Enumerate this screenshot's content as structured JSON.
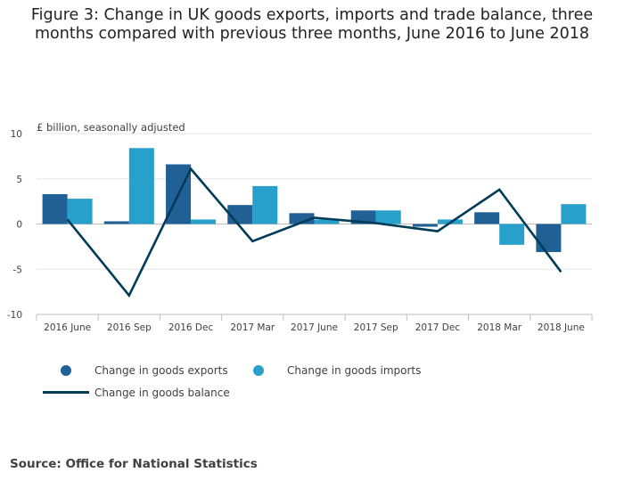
{
  "title_lines": [
    "Figure 3: Change in UK goods exports, imports and trade balance, three",
    "months compared with previous three months, June 2016 to June 2018"
  ],
  "source": "Source: Office for National Statistics",
  "colors": {
    "exports": "#206095",
    "imports": "#27a0cc",
    "balance": "#003c57",
    "grid": "#e6e6e6",
    "axis": "#bebebe"
  },
  "chart_data": {
    "type": "bar",
    "title": "Figure 3: Change in UK goods exports, imports and trade balance, three months compared with previous three months, June 2016 to June 2018",
    "ylabel": "£ billion, seasonally adjusted",
    "xlabel": "",
    "ylim": [
      -10,
      10
    ],
    "yticks": [
      10,
      5,
      0,
      -5,
      -10
    ],
    "categories": [
      "2016 June",
      "2016 Sep",
      "2016 Dec",
      "2017 Mar",
      "2017 June",
      "2017 Sep",
      "2017 Dec",
      "2018 Mar",
      "2018 June"
    ],
    "series": [
      {
        "name": "Change in goods exports",
        "type": "bar",
        "values": [
          3.3,
          0.3,
          6.6,
          2.1,
          1.2,
          1.5,
          -0.3,
          1.3,
          -3.1
        ]
      },
      {
        "name": "Change in goods imports",
        "type": "bar",
        "values": [
          2.8,
          8.4,
          0.5,
          4.2,
          0.5,
          1.5,
          0.5,
          -2.3,
          2.2
        ]
      },
      {
        "name": "Change in goods balance",
        "type": "line",
        "values": [
          0.5,
          -7.9,
          6.1,
          -1.9,
          0.7,
          0.1,
          -0.8,
          3.8,
          -5.3
        ]
      }
    ],
    "legend_position": "bottom"
  }
}
